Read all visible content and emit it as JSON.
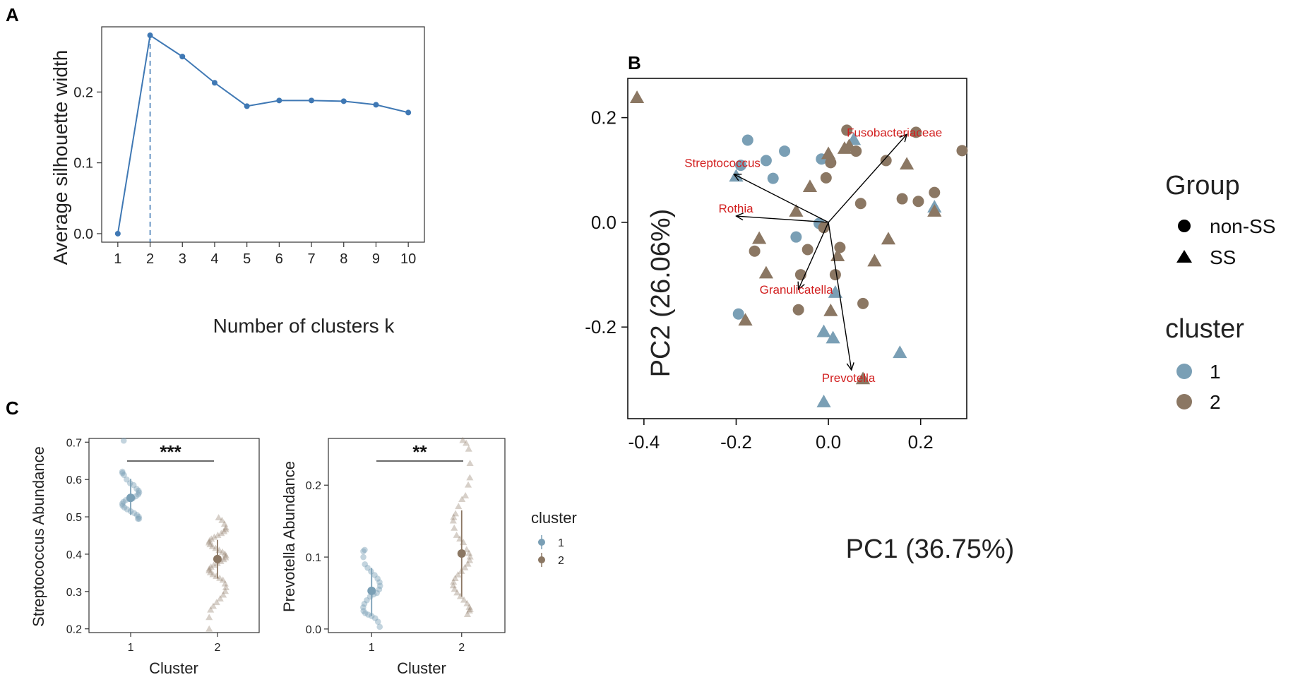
{
  "panel_labels": {
    "a": "A",
    "b": "B",
    "c": "C"
  },
  "colors": {
    "cluster1": "#7a9fb5",
    "cluster2": "#8b7763",
    "line_a": "#3f78b4",
    "loading": "#d21f1f"
  },
  "chart_data": [
    {
      "id": "A",
      "type": "line",
      "xlabel": "Number of clusters k",
      "ylabel": "Average silhouette width",
      "x": [
        1,
        2,
        3,
        4,
        5,
        6,
        7,
        8,
        9,
        10
      ],
      "values": [
        0.0,
        0.28,
        0.25,
        0.213,
        0.18,
        0.188,
        0.188,
        0.187,
        0.182,
        0.171
      ],
      "xlim": [
        0.5,
        10.5
      ],
      "ylim": [
        -0.012,
        0.292
      ],
      "yticks": [
        0.0,
        0.1,
        0.2
      ],
      "ytick_labels": [
        "0.0",
        "0.1",
        "0.2"
      ],
      "xtick_labels": [
        "1",
        "2",
        "3",
        "4",
        "5",
        "6",
        "7",
        "8",
        "9",
        "10"
      ],
      "optimal_k": 2
    },
    {
      "id": "B",
      "type": "scatter",
      "xlabel": "PC1 (36.75%)",
      "ylabel": "PC2 (26.06%)",
      "xlim": [
        -0.435,
        0.3
      ],
      "ylim": [
        -0.375,
        0.275
      ],
      "xticks": [
        -0.4,
        -0.2,
        0.0,
        0.2
      ],
      "xtick_labels": [
        "-0.4",
        "-0.2",
        "0.0",
        "0.2"
      ],
      "yticks": [
        -0.2,
        0.0,
        0.2
      ],
      "ytick_labels": [
        "-0.2",
        "0.0",
        "0.2"
      ],
      "points": [
        {
          "x": -0.415,
          "y": 0.237,
          "group": "SS",
          "cluster": 2
        },
        {
          "x": -0.175,
          "y": 0.157,
          "group": "non-SS",
          "cluster": 1
        },
        {
          "x": -0.19,
          "y": 0.109,
          "group": "non-SS",
          "cluster": 1
        },
        {
          "x": -0.135,
          "y": 0.118,
          "group": "non-SS",
          "cluster": 1
        },
        {
          "x": -0.095,
          "y": 0.136,
          "group": "non-SS",
          "cluster": 1
        },
        {
          "x": -0.12,
          "y": 0.084,
          "group": "non-SS",
          "cluster": 1
        },
        {
          "x": -0.015,
          "y": 0.121,
          "group": "non-SS",
          "cluster": 1
        },
        {
          "x": -0.2,
          "y": 0.087,
          "group": "SS",
          "cluster": 1
        },
        {
          "x": -0.07,
          "y": -0.028,
          "group": "non-SS",
          "cluster": 1
        },
        {
          "x": -0.02,
          "y": -0.002,
          "group": "non-SS",
          "cluster": 1
        },
        {
          "x": -0.195,
          "y": -0.175,
          "group": "non-SS",
          "cluster": 1
        },
        {
          "x": 0.055,
          "y": 0.157,
          "group": "SS",
          "cluster": 1
        },
        {
          "x": 0.23,
          "y": 0.028,
          "group": "SS",
          "cluster": 1
        },
        {
          "x": 0.015,
          "y": -0.135,
          "group": "SS",
          "cluster": 1
        },
        {
          "x": -0.01,
          "y": -0.21,
          "group": "SS",
          "cluster": 1
        },
        {
          "x": 0.01,
          "y": -0.222,
          "group": "SS",
          "cluster": 1
        },
        {
          "x": 0.155,
          "y": -0.25,
          "group": "SS",
          "cluster": 1
        },
        {
          "x": -0.01,
          "y": -0.344,
          "group": "SS",
          "cluster": 1
        },
        {
          "x": 0.04,
          "y": 0.176,
          "group": "non-SS",
          "cluster": 2
        },
        {
          "x": 0.19,
          "y": 0.172,
          "group": "non-SS",
          "cluster": 2
        },
        {
          "x": 0.29,
          "y": 0.137,
          "group": "non-SS",
          "cluster": 2
        },
        {
          "x": 0.06,
          "y": 0.136,
          "group": "non-SS",
          "cluster": 2
        },
        {
          "x": 0.125,
          "y": 0.118,
          "group": "non-SS",
          "cluster": 2
        },
        {
          "x": 0.005,
          "y": 0.114,
          "group": "non-SS",
          "cluster": 2
        },
        {
          "x": -0.005,
          "y": 0.085,
          "group": "non-SS",
          "cluster": 2
        },
        {
          "x": 0.16,
          "y": 0.045,
          "group": "non-SS",
          "cluster": 2
        },
        {
          "x": 0.195,
          "y": 0.04,
          "group": "non-SS",
          "cluster": 2
        },
        {
          "x": 0.23,
          "y": 0.057,
          "group": "non-SS",
          "cluster": 2
        },
        {
          "x": 0.07,
          "y": 0.036,
          "group": "non-SS",
          "cluster": 2
        },
        {
          "x": -0.01,
          "y": -0.01,
          "group": "non-SS",
          "cluster": 2
        },
        {
          "x": -0.045,
          "y": -0.052,
          "group": "non-SS",
          "cluster": 2
        },
        {
          "x": 0.025,
          "y": -0.048,
          "group": "non-SS",
          "cluster": 2
        },
        {
          "x": -0.16,
          "y": -0.055,
          "group": "non-SS",
          "cluster": 2
        },
        {
          "x": -0.06,
          "y": -0.1,
          "group": "non-SS",
          "cluster": 2
        },
        {
          "x": 0.015,
          "y": -0.1,
          "group": "non-SS",
          "cluster": 2
        },
        {
          "x": -0.065,
          "y": -0.167,
          "group": "non-SS",
          "cluster": 2
        },
        {
          "x": 0.075,
          "y": -0.155,
          "group": "non-SS",
          "cluster": 2
        },
        {
          "x": 0.045,
          "y": 0.145,
          "group": "SS",
          "cluster": 2
        },
        {
          "x": 0.0,
          "y": 0.13,
          "group": "SS",
          "cluster": 2
        },
        {
          "x": 0.035,
          "y": 0.14,
          "group": "SS",
          "cluster": 2
        },
        {
          "x": 0.17,
          "y": 0.11,
          "group": "SS",
          "cluster": 2
        },
        {
          "x": -0.04,
          "y": 0.067,
          "group": "SS",
          "cluster": 2
        },
        {
          "x": 0.23,
          "y": 0.02,
          "group": "SS",
          "cluster": 2
        },
        {
          "x": -0.07,
          "y": 0.02,
          "group": "SS",
          "cluster": 2
        },
        {
          "x": -0.15,
          "y": -0.032,
          "group": "SS",
          "cluster": 2
        },
        {
          "x": 0.02,
          "y": -0.065,
          "group": "SS",
          "cluster": 2
        },
        {
          "x": 0.13,
          "y": -0.033,
          "group": "SS",
          "cluster": 2
        },
        {
          "x": 0.1,
          "y": -0.075,
          "group": "SS",
          "cluster": 2
        },
        {
          "x": -0.135,
          "y": -0.098,
          "group": "SS",
          "cluster": 2
        },
        {
          "x": -0.18,
          "y": -0.188,
          "group": "SS",
          "cluster": 2
        },
        {
          "x": 0.005,
          "y": -0.17,
          "group": "SS",
          "cluster": 2
        },
        {
          "x": 0.075,
          "y": -0.3,
          "group": "SS",
          "cluster": 2
        }
      ],
      "loadings": [
        {
          "label": "Fusobacteriaceae",
          "x": 0.17,
          "y": 0.168
        },
        {
          "label": "Streptococcus",
          "x": -0.205,
          "y": 0.092
        },
        {
          "label": "Rothia",
          "x": -0.2,
          "y": 0.012
        },
        {
          "label": "Granulicatella",
          "x": -0.065,
          "y": -0.128
        },
        {
          "label": "Prevotella",
          "x": 0.05,
          "y": -0.282
        }
      ],
      "loading_origin": {
        "x": 0.0,
        "y": 0.0
      },
      "legend": {
        "group_title": "Group",
        "groups": [
          "non-SS",
          "SS"
        ],
        "cluster_title": "cluster",
        "clusters": [
          "1",
          "2"
        ],
        "placement": "right"
      }
    },
    {
      "id": "C1",
      "type": "scatter",
      "ylabel": "Streptococcus Abundance",
      "xlabel": "Cluster",
      "categories": [
        "1",
        "2"
      ],
      "ylim": [
        0.19,
        0.71
      ],
      "yticks": [
        0.2,
        0.3,
        0.4,
        0.5,
        0.6,
        0.7
      ],
      "ytick_labels": [
        "0.2",
        "0.3",
        "0.4",
        "0.5",
        "0.6",
        "0.7"
      ],
      "significance": "***",
      "summary": [
        {
          "cluster": "1",
          "mean": 0.551,
          "low": 0.505,
          "high": 0.602
        },
        {
          "cluster": "2",
          "mean": 0.387,
          "low": 0.335,
          "high": 0.438
        }
      ],
      "cluster1_values": [
        0.704,
        0.621,
        0.617,
        0.612,
        0.6,
        0.59,
        0.585,
        0.575,
        0.57,
        0.565,
        0.56,
        0.555,
        0.55,
        0.548,
        0.545,
        0.54,
        0.535,
        0.53,
        0.525,
        0.52,
        0.515,
        0.51,
        0.505,
        0.5,
        0.495,
        0.495
      ],
      "cluster2_values": [
        0.497,
        0.49,
        0.48,
        0.47,
        0.465,
        0.46,
        0.455,
        0.45,
        0.445,
        0.44,
        0.435,
        0.43,
        0.425,
        0.42,
        0.415,
        0.41,
        0.405,
        0.4,
        0.395,
        0.39,
        0.385,
        0.38,
        0.375,
        0.37,
        0.365,
        0.36,
        0.355,
        0.35,
        0.345,
        0.34,
        0.335,
        0.33,
        0.32,
        0.31,
        0.3,
        0.29,
        0.28,
        0.27,
        0.26,
        0.25,
        0.23,
        0.199
      ]
    },
    {
      "id": "C2",
      "type": "scatter",
      "ylabel": "Prevotella Abundance",
      "xlabel": "Cluster",
      "categories": [
        "1",
        "2"
      ],
      "ylim": [
        -0.005,
        0.265
      ],
      "yticks": [
        0.0,
        0.1,
        0.2
      ],
      "ytick_labels": [
        "0.0",
        "0.1",
        "0.2"
      ],
      "significance": "**",
      "summary": [
        {
          "cluster": "1",
          "mean": 0.053,
          "low": 0.018,
          "high": 0.085
        },
        {
          "cluster": "2",
          "mean": 0.105,
          "low": 0.045,
          "high": 0.165
        }
      ],
      "cluster1_values": [
        0.11,
        0.108,
        0.1,
        0.09,
        0.085,
        0.08,
        0.075,
        0.07,
        0.065,
        0.06,
        0.055,
        0.05,
        0.048,
        0.045,
        0.04,
        0.035,
        0.03,
        0.025,
        0.022,
        0.02,
        0.018,
        0.015,
        0.01,
        0.003
      ],
      "cluster2_values": [
        0.262,
        0.258,
        0.25,
        0.23,
        0.21,
        0.2,
        0.185,
        0.18,
        0.17,
        0.16,
        0.155,
        0.15,
        0.14,
        0.13,
        0.125,
        0.12,
        0.11,
        0.105,
        0.1,
        0.095,
        0.09,
        0.085,
        0.08,
        0.075,
        0.07,
        0.065,
        0.06,
        0.055,
        0.05,
        0.045,
        0.04,
        0.035,
        0.03,
        0.027,
        0.025,
        0.02
      ],
      "legend": {
        "title": "cluster",
        "entries": [
          "1",
          "2"
        ]
      }
    }
  ]
}
